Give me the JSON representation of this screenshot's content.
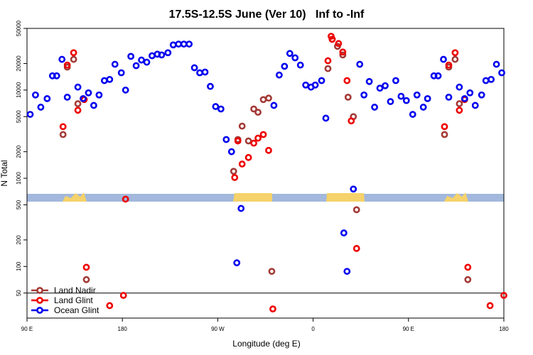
{
  "chart_data": {
    "type": "scatter",
    "title": "17.5S-12.5S June (Ver 10)   Inf to -Inf",
    "x_label": "Longitude (deg E)",
    "y_label": "N Total",
    "log_y": true,
    "xlim": [
      90,
      540
    ],
    "ylim": [
      26,
      50000
    ],
    "xticks": [
      {
        "value": 90,
        "label": "90 E"
      },
      180,
      {
        "value": 270,
        "label": "90 W"
      },
      {
        "value": 360,
        "label": "0"
      },
      {
        "value": 450,
        "label": "90 E"
      },
      {
        "value": 540,
        "label": "180"
      }
    ],
    "yticks": [
      50,
      100,
      200,
      500,
      1000,
      2000,
      5000,
      10000,
      20000,
      50000
    ],
    "hline": 50,
    "legend": "lower left",
    "series": [
      {
        "name": "Land Nadir",
        "color": "#a33a36",
        "x": [
          124,
          128,
          134,
          138,
          146,
          285,
          289,
          293,
          299,
          304,
          308,
          313,
          318,
          321,
          374,
          378,
          383,
          388,
          393,
          398,
          401,
          484,
          488,
          494,
          498,
          506
        ],
        "values": [
          3130,
          18200,
          22300,
          7000,
          71,
          1200,
          2750,
          3900,
          2650,
          6100,
          5600,
          7800,
          8100,
          88,
          17500,
          37700,
          31300,
          25000,
          8300,
          5000,
          440,
          3130,
          18200,
          22300,
          7000,
          71
        ]
      },
      {
        "name": "Land Glint",
        "color": "#ee0000",
        "x": [
          124,
          128,
          134,
          138,
          144,
          146,
          168,
          181,
          183,
          286,
          289,
          293,
          299,
          304,
          308,
          313,
          318,
          322,
          374,
          377,
          378,
          384,
          388,
          392,
          396,
          401,
          484,
          488,
          494,
          498,
          503,
          506,
          527,
          540
        ],
        "values": [
          3850,
          19200,
          26500,
          5900,
          7800,
          98,
          36,
          47,
          580,
          1020,
          2650,
          1450,
          1720,
          2500,
          2850,
          3130,
          2070,
          33,
          21500,
          40700,
          37700,
          33700,
          27000,
          12800,
          4470,
          160,
          3850,
          19200,
          26500,
          5900,
          7800,
          98,
          36,
          47
        ]
      },
      {
        "name": "Ocean Glint",
        "color": "#0000ee",
        "x": [
          93,
          98,
          103,
          109,
          114,
          118,
          123,
          128,
          138,
          143,
          148,
          153,
          158,
          163,
          168,
          173,
          179,
          183,
          188,
          193,
          198,
          203,
          208,
          213,
          217,
          223,
          228,
          233,
          238,
          243,
          248,
          253,
          258,
          263,
          268,
          273,
          278,
          283,
          288,
          292,
          323,
          328,
          333,
          338,
          343,
          348,
          353,
          358,
          362,
          368,
          372,
          389,
          392,
          398,
          404,
          408,
          413,
          418,
          423,
          428,
          433,
          438,
          443,
          448,
          454,
          458,
          464,
          468,
          474,
          478,
          483,
          488,
          498,
          503,
          508,
          513,
          519,
          523,
          528,
          533,
          538
        ],
        "values": [
          5300,
          8800,
          6400,
          8000,
          14500,
          14500,
          22300,
          8300,
          10800,
          8000,
          9300,
          6700,
          8800,
          12800,
          13200,
          19600,
          15700,
          10000,
          24100,
          18900,
          21900,
          20700,
          24500,
          25500,
          25000,
          26500,
          32500,
          33200,
          33200,
          33200,
          17900,
          15700,
          16000,
          11000,
          6500,
          6100,
          2750,
          2000,
          110,
          455,
          6700,
          14800,
          18600,
          26000,
          23200,
          19200,
          11400,
          10800,
          11400,
          12800,
          4800,
          240,
          88,
          755,
          19600,
          8800,
          12500,
          6400,
          10500,
          11200,
          7400,
          12800,
          8500,
          7600,
          5300,
          8800,
          6400,
          8000,
          14500,
          14500,
          22300,
          8300,
          10800,
          8000,
          9300,
          6700,
          8800,
          12800,
          13200,
          19600,
          15700
        ]
      }
    ]
  }
}
